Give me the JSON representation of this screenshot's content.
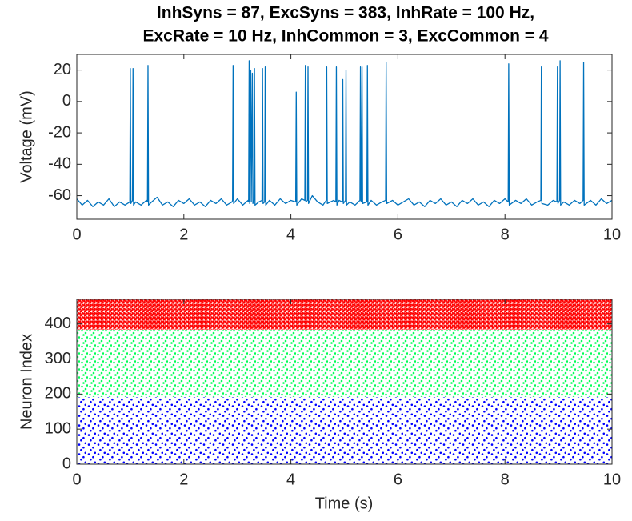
{
  "chart_data": [
    {
      "type": "line",
      "title": [
        "InhSyns = 87, ExcSyns = 383, InhRate = 100 Hz,",
        "ExcRate = 10 Hz, InhCommon = 3, ExcCommon = 4"
      ],
      "ylabel": "Voltage (mV)",
      "xlim": [
        0,
        10
      ],
      "xticks": [
        0,
        2,
        4,
        6,
        8,
        10
      ],
      "ylim": [
        -75,
        30
      ],
      "yticks": [
        -60,
        -40,
        -20,
        0,
        20
      ],
      "series": [
        {
          "color": "#0072bd",
          "x": [
            0,
            0.1,
            0.2,
            0.3,
            0.4,
            0.5,
            0.6,
            0.7,
            0.8,
            0.9,
            0.99,
            1.0,
            1.01,
            1.04,
            1.05,
            1.06,
            1.1,
            1.2,
            1.3,
            1.32,
            1.33,
            1.34,
            1.4,
            1.5,
            1.6,
            1.7,
            1.8,
            1.9,
            2.0,
            2.1,
            2.2,
            2.3,
            2.4,
            2.5,
            2.6,
            2.7,
            2.8,
            2.9,
            2.91,
            2.92,
            2.93,
            3.0,
            3.1,
            3.2,
            3.21,
            3.22,
            3.23,
            3.25,
            3.26,
            3.28,
            3.29,
            3.31,
            3.32,
            3.33,
            3.4,
            3.46,
            3.47,
            3.48,
            3.51,
            3.52,
            3.53,
            3.6,
            3.7,
            3.8,
            3.9,
            4.0,
            4.09,
            4.1,
            4.11,
            4.2,
            4.26,
            4.27,
            4.28,
            4.31,
            4.32,
            4.33,
            4.4,
            4.5,
            4.6,
            4.66,
            4.67,
            4.68,
            4.8,
            4.84,
            4.85,
            4.86,
            4.9,
            4.96,
            4.97,
            4.98,
            5.02,
            5.03,
            5.04,
            5.1,
            5.2,
            5.29,
            5.3,
            5.31,
            5.32,
            5.33,
            5.34,
            5.42,
            5.43,
            5.44,
            5.5,
            5.6,
            5.7,
            5.77,
            5.78,
            5.79,
            5.9,
            6.0,
            6.1,
            6.2,
            6.3,
            6.4,
            6.5,
            6.6,
            6.7,
            6.8,
            6.9,
            7.0,
            7.1,
            7.2,
            7.3,
            7.4,
            7.5,
            7.6,
            7.7,
            7.8,
            7.9,
            8.0,
            8.06,
            8.07,
            8.08,
            8.2,
            8.3,
            8.4,
            8.5,
            8.6,
            8.67,
            8.68,
            8.69,
            8.8,
            8.9,
            8.97,
            8.98,
            8.99,
            9.02,
            9.03,
            9.04,
            9.1,
            9.2,
            9.3,
            9.4,
            9.46,
            9.47,
            9.48,
            9.6,
            9.7,
            9.8,
            9.9,
            10.0
          ],
          "values": [
            -62,
            -66,
            -63,
            -67,
            -64,
            -66,
            -62,
            -67,
            -64,
            -66,
            -64,
            21,
            -65,
            -63,
            21,
            -66,
            -64,
            -66,
            -63,
            -64,
            23,
            -66,
            -64,
            -61,
            -66,
            -64,
            -67,
            -63,
            -65,
            -62,
            -66,
            -64,
            -67,
            -63,
            -65,
            -62,
            -66,
            -64,
            -63,
            23,
            -65,
            -62,
            -66,
            -63,
            -64,
            26,
            -65,
            20,
            -64,
            18,
            -65,
            -63,
            21,
            -66,
            -64,
            -63,
            21,
            -65,
            -64,
            22,
            -66,
            -63,
            -66,
            -62,
            -65,
            -63,
            -64,
            6,
            -66,
            -62,
            -63,
            23,
            -64,
            -63,
            22,
            -65,
            -60,
            -64,
            -66,
            -63,
            22,
            -65,
            -63,
            -64,
            22,
            -66,
            -63,
            -64,
            14,
            -65,
            -63,
            20,
            -66,
            -64,
            -66,
            -63,
            22,
            -64,
            -63,
            22,
            -65,
            -64,
            23,
            -66,
            -63,
            -66,
            -64,
            -63,
            25,
            -65,
            -63,
            -66,
            -64,
            -62,
            -66,
            -64,
            -67,
            -63,
            -65,
            -62,
            -66,
            -64,
            -67,
            -63,
            -65,
            -62,
            -66,
            -64,
            -67,
            -63,
            -65,
            -62,
            -64,
            24,
            -66,
            -63,
            -65,
            -62,
            -66,
            -64,
            -63,
            22,
            -65,
            -66,
            -63,
            -64,
            22,
            -65,
            -63,
            26,
            -66,
            -64,
            -66,
            -63,
            -65,
            -63,
            25,
            -66,
            -63,
            -66,
            -62,
            -65,
            -63
          ]
        }
      ]
    },
    {
      "type": "raster",
      "xlabel": "Time (s)",
      "ylabel": "Neuron Index",
      "xlim": [
        0,
        10
      ],
      "xticks": [
        0,
        2,
        4,
        6,
        8,
        10
      ],
      "ylim": [
        0,
        470
      ],
      "yticks": [
        0,
        100,
        200,
        300,
        400
      ],
      "bands": [
        {
          "color": "#0000ff",
          "values": [
            0,
            191
          ]
        },
        {
          "color": "#00ff55",
          "values": [
            192,
            383
          ]
        },
        {
          "color": "#ff0000",
          "values": [
            384,
            470
          ]
        }
      ]
    }
  ]
}
